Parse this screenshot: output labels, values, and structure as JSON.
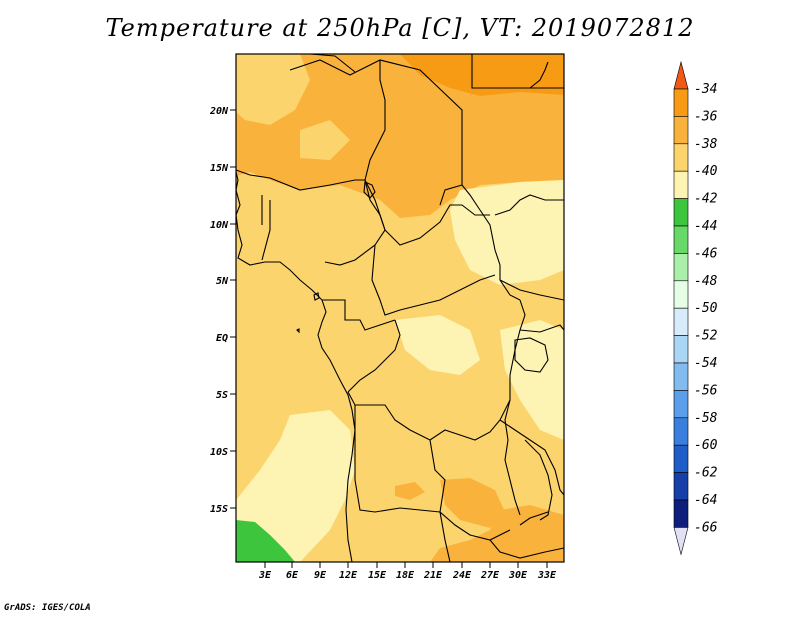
{
  "title": "Temperature at 250hPa [C], VT: 2019072812",
  "credit": "GrADS: IGES/COLA",
  "map": {
    "lat_labels": [
      "20N",
      "15N",
      "10N",
      "5N",
      "EQ",
      "5S",
      "10S",
      "15S"
    ],
    "lon_labels": [
      "3E",
      "6E",
      "9E",
      "12E",
      "15E",
      "18E",
      "21E",
      "24E",
      "27E",
      "30E",
      "33E"
    ]
  },
  "colorbar": {
    "labels": [
      "-34",
      "-36",
      "-38",
      "-40",
      "-42",
      "-44",
      "-46",
      "-48",
      "-50",
      "-52",
      "-54",
      "-56",
      "-58",
      "-60",
      "-62",
      "-64",
      "-66"
    ],
    "colors": [
      "#f05a14",
      "#f79b15",
      "#f9b33d",
      "#fcd46d",
      "#fdf4b3",
      "#3dc63d",
      "#68d968",
      "#a9efa9",
      "#e6fde6",
      "#d6ecfa",
      "#aad6f6",
      "#82bbf0",
      "#5b9ee9",
      "#3a7fdd",
      "#1f5ec9",
      "#173fa8",
      "#0d1f7a",
      "#e1e1f5"
    ]
  }
}
